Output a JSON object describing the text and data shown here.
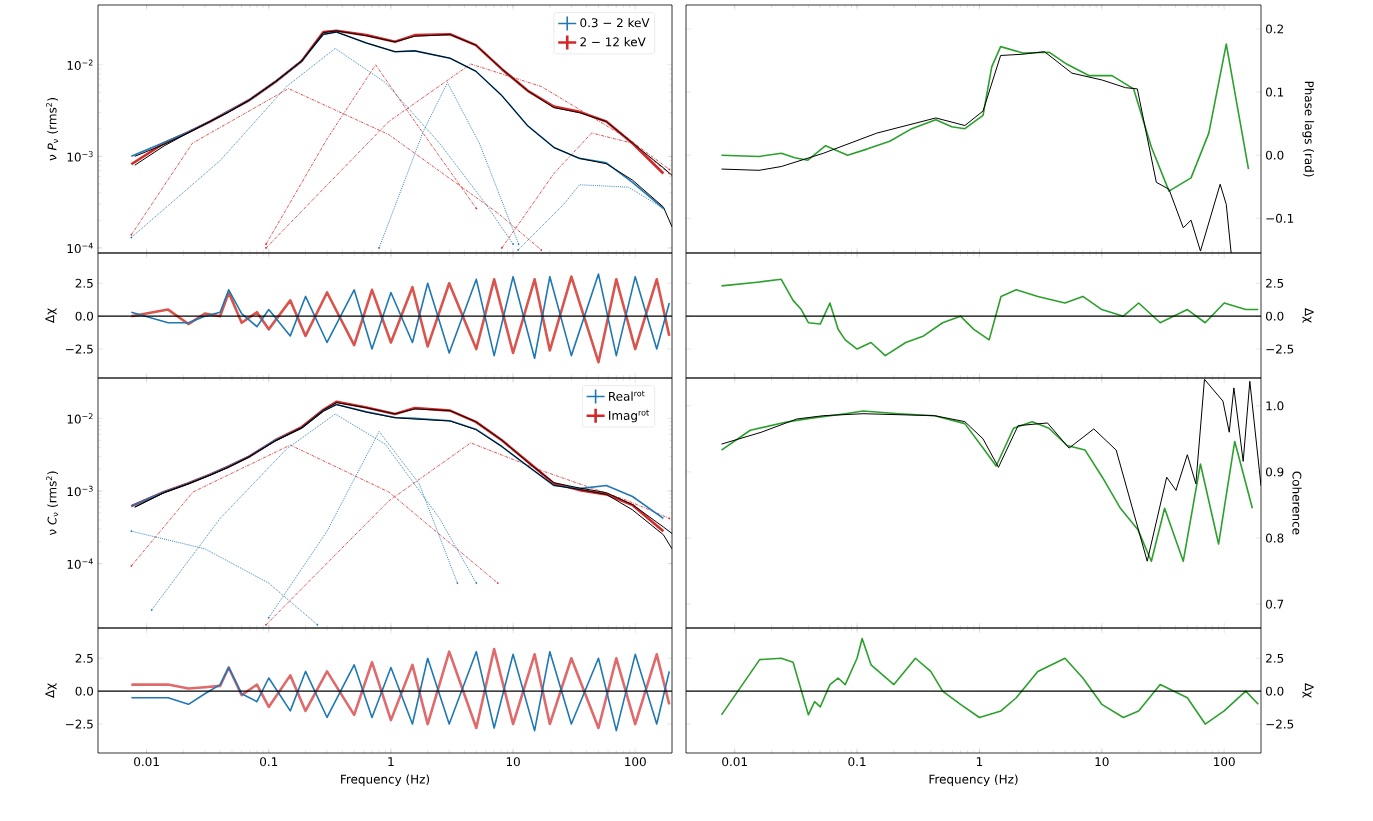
{
  "chart_data": [
    {
      "type": "line",
      "log": "xy",
      "ylabel": "ν *P*$_{ν}$ (rms$^{2}$)",
      "xlim": [
        0.004,
        200
      ],
      "ylim": [
        8.8e-05,
        0.045
      ],
      "xticks": [
        0.01,
        0.1,
        1,
        10,
        100
      ],
      "yticks": [
        {
          "value": 0.0001,
          "label": "10$^{−4}$"
        },
        {
          "value": 0.001,
          "label": "10$^{−3}$"
        },
        {
          "value": 0.01,
          "label": "10$^{−2}$"
        }
      ],
      "tick_labels": "y",
      "legend": "top right",
      "series": [
        {
          "name": "0.3 − 2 keV",
          "color": "#1f77b4",
          "line_style": "solid",
          "x": [
            0.0075,
            0.0139,
            0.0218,
            0.033,
            0.046,
            0.069,
            0.113,
            0.186,
            0.28,
            0.358,
            0.63,
            1.08,
            1.57,
            3.05,
            4.96,
            8.1,
            13.2,
            21.6,
            35,
            58,
            95,
            170
          ],
          "values": [
            0.001,
            0.00142,
            0.00183,
            0.0024,
            0.00306,
            0.0041,
            0.0065,
            0.011,
            0.0215,
            0.0228,
            0.0173,
            0.0139,
            0.0142,
            0.0118,
            0.0085,
            0.0046,
            0.00215,
            0.00125,
            0.00095,
            0.00085,
            0.00052,
            0.00027
          ]
        },
        {
          "name": "2 − 12 keV",
          "color": "#d62728",
          "line_style": "solid",
          "x": [
            0.0075,
            0.0139,
            0.0218,
            0.033,
            0.046,
            0.069,
            0.113,
            0.186,
            0.28,
            0.358,
            0.63,
            1.08,
            1.57,
            3.05,
            4.96,
            8.1,
            13.2,
            21.6,
            35,
            58,
            95,
            170
          ],
          "values": [
            0.00082,
            0.00139,
            0.00183,
            0.0024,
            0.00306,
            0.0041,
            0.0065,
            0.011,
            0.0228,
            0.0235,
            0.0211,
            0.0179,
            0.0211,
            0.0216,
            0.0164,
            0.00896,
            0.0052,
            0.0035,
            0.00306,
            0.0024,
            0.00139,
            0.00065
          ]
        },
        {
          "color": "#000000",
          "line_style": "solid",
          "x": [
            0.008,
            0.0139,
            0.0218,
            0.033,
            0.046,
            0.069,
            0.113,
            0.186,
            0.28,
            0.358,
            0.63,
            1.08,
            1.57,
            3.05,
            4.96,
            8.1,
            13.2,
            21.6,
            35,
            58,
            95,
            170,
            200
          ],
          "values": [
            0.001,
            0.00135,
            0.0018,
            0.0024,
            0.003,
            0.0041,
            0.0065,
            0.011,
            0.0215,
            0.0228,
            0.0173,
            0.0139,
            0.0142,
            0.0118,
            0.0085,
            0.0046,
            0.00215,
            0.00125,
            0.00095,
            0.00083,
            0.00055,
            0.00028,
            0.00017
          ]
        },
        {
          "color": "#000000",
          "line_style": "solid",
          "x": [
            0.008,
            0.0139,
            0.0218,
            0.033,
            0.046,
            0.069,
            0.113,
            0.186,
            0.28,
            0.358,
            0.63,
            1.08,
            1.57,
            3.05,
            4.96,
            8.1,
            13.2,
            21.6,
            35,
            58,
            95,
            170,
            200
          ],
          "values": [
            0.0008,
            0.0013,
            0.0018,
            0.0024,
            0.003,
            0.0041,
            0.0065,
            0.011,
            0.0225,
            0.0235,
            0.0208,
            0.0178,
            0.0205,
            0.0214,
            0.0164,
            0.009,
            0.0052,
            0.0034,
            0.003,
            0.0024,
            0.0014,
            0.00075,
            0.00062
          ]
        },
        {
          "color": "#d62728",
          "line_style": "dashed",
          "x": [
            0.0075,
            0.0237,
            0.145,
            0.96,
            7.5,
            17
          ],
          "values": [
            0.000139,
            0.00139,
            0.0055,
            0.00173,
            0.00024,
            9.5e-05
          ]
        },
        {
          "color": "#1f77b4",
          "line_style": "dotted",
          "x": [
            0.0075,
            0.04,
            0.14,
            0.35,
            0.9,
            2.5,
            6,
            10
          ],
          "values": [
            0.00013,
            0.0009,
            0.0058,
            0.0151,
            0.0064,
            0.00139,
            0.0003,
            0.00011
          ]
        },
        {
          "color": "#d62728",
          "line_style": "dashed",
          "x": [
            0.095,
            0.96,
            4.5,
            17,
            88,
            190
          ],
          "values": [
            0.0001,
            0.0024,
            0.0102,
            0.0058,
            0.00155,
            0.00072
          ]
        },
        {
          "color": "#1f77b4",
          "line_style": "dotted",
          "x": [
            0.8,
            1.85,
            2.9,
            5.3,
            11.1
          ],
          "values": [
            0.0001,
            0.0019,
            0.0064,
            0.00139,
            0.00011
          ]
        },
        {
          "color": "#d62728",
          "line_style": "dashed",
          "x": [
            0.095,
            0.3,
            0.75,
            1.57,
            5
          ],
          "values": [
            0.00011,
            0.00155,
            0.01,
            0.0024,
            0.00027
          ]
        },
        {
          "color": "#1f77b4",
          "line_style": "dotted",
          "x": [
            11,
            26,
            35,
            88,
            170
          ],
          "values": [
            9.5e-05,
            0.0003,
            0.00049,
            0.00046,
            0.00027
          ]
        },
        {
          "color": "#d62728",
          "line_style": "dashed",
          "x": [
            8.1,
            21.6,
            44,
            95,
            190
          ],
          "values": [
            0.0001,
            0.00065,
            0.0018,
            0.00139,
            0.00065
          ]
        }
      ]
    },
    {
      "type": "line",
      "log": "x",
      "ylabel": "Phase lags (rad)",
      "xlim": [
        0.004,
        200
      ],
      "ylim": [
        -0.155,
        0.238
      ],
      "xticks": [
        0.01,
        0.1,
        1,
        10,
        100
      ],
      "yticks": [
        {
          "value": -0.1,
          "label": "−0.1"
        },
        {
          "value": 0,
          "label": "0.0"
        },
        0.1,
        0.2
      ],
      "tick_labels": "y",
      "series": [
        {
          "color": "#2ca02c",
          "line_style": "solid",
          "x": [
            0.0078,
            0.0158,
            0.024,
            0.031,
            0.0396,
            0.0553,
            0.0837,
            0.122,
            0.185,
            0.28,
            0.44,
            0.593,
            0.76,
            1.07,
            1.26,
            1.49,
            2.26,
            3.73,
            5.2,
            7.9,
            12.1,
            18.2,
            25.4,
            35.4,
            53.6,
            74.9,
            104,
            158
          ],
          "values": [
            0.0,
            -0.002,
            0.003,
            -0.004,
            -0.008,
            0.015,
            0.0,
            0.01,
            0.022,
            0.042,
            0.056,
            0.045,
            0.042,
            0.063,
            0.14,
            0.172,
            0.162,
            0.163,
            0.144,
            0.126,
            0.126,
            0.105,
            0.013,
            -0.057,
            -0.036,
            0.035,
            0.176,
            -0.022
          ]
        },
        {
          "color": "#000000",
          "line_style": "solid",
          "x": [
            0.0078,
            0.0158,
            0.024,
            0.053,
            0.145,
            0.44,
            0.76,
            1.07,
            1.49,
            2.26,
            3.4,
            5.7,
            10.1,
            15.6,
            19.5,
            27.9,
            35.4,
            46.3,
            53.6,
            64,
            92.7,
            104,
            114
          ],
          "values": [
            -0.022,
            -0.024,
            -0.018,
            0.003,
            0.035,
            0.059,
            0.047,
            0.07,
            0.158,
            0.16,
            0.164,
            0.13,
            0.119,
            0.107,
            0.105,
            -0.043,
            -0.054,
            -0.115,
            -0.103,
            -0.152,
            -0.046,
            -0.078,
            -0.155
          ]
        }
      ]
    },
    {
      "type": "line",
      "log": "x",
      "ylabel": "Δχ",
      "xlim": [
        0.004,
        200
      ],
      "ylim": [
        -4.7,
        4.8
      ],
      "xticks": [
        0.01,
        0.1,
        1,
        10,
        100
      ],
      "yticks": [
        {
          "value": -2.5,
          "label": "−2.5"
        },
        {
          "value": 0,
          "label": "0.0"
        },
        2.5
      ],
      "tick_labels": "y",
      "ref_lines": [
        {
          "axis": "y",
          "value": 0,
          "color": "#000000"
        }
      ],
      "series": [
        {
          "color": "#1f77b4",
          "line_style": "solid",
          "x": [
            0.0075,
            0.015,
            0.022,
            0.03,
            0.04,
            0.047,
            0.06,
            0.08,
            0.1,
            0.15,
            0.2,
            0.3,
            0.5,
            0.7,
            1,
            1.5,
            2,
            3,
            5,
            7,
            10,
            15,
            20,
            30,
            50,
            70,
            100,
            150,
            190
          ],
          "values": [
            0.3,
            -0.5,
            -0.5,
            0.0,
            0.3,
            2.0,
            0.2,
            -0.8,
            0.5,
            -1.5,
            1.5,
            -2.0,
            2.0,
            -2.5,
            1.8,
            -2.0,
            2.5,
            -2.8,
            2.8,
            -3.0,
            3.0,
            -3.2,
            3.0,
            -3.0,
            3.2,
            -3.0,
            3.0,
            -2.5,
            1.0
          ]
        },
        {
          "color": "#d9544d",
          "line_style": "solid",
          "x": [
            0.0075,
            0.015,
            0.022,
            0.03,
            0.04,
            0.047,
            0.06,
            0.08,
            0.1,
            0.15,
            0.2,
            0.3,
            0.5,
            0.7,
            1,
            1.5,
            2,
            3,
            5,
            7,
            10,
            15,
            20,
            30,
            50,
            70,
            100,
            150,
            190
          ],
          "values": [
            0.0,
            0.5,
            -0.6,
            0.2,
            0.0,
            1.8,
            -0.5,
            0.3,
            -1.0,
            1.2,
            -1.5,
            1.8,
            -2.2,
            2.0,
            -2.0,
            2.2,
            -2.3,
            2.5,
            -2.5,
            2.8,
            -2.8,
            2.8,
            -2.6,
            3.0,
            -3.5,
            2.8,
            -2.5,
            2.8,
            -1.5
          ]
        }
      ]
    },
    {
      "type": "line",
      "log": "x",
      "ylabel": "Δχ",
      "xlim": [
        0.004,
        200
      ],
      "ylim": [
        -4.7,
        4.8
      ],
      "xticks": [
        0.01,
        0.1,
        1,
        10,
        100
      ],
      "yticks": [
        {
          "value": -2.5,
          "label": "−2.5"
        },
        {
          "value": 0,
          "label": "0.0"
        },
        2.5
      ],
      "tick_labels": "y",
      "ref_lines": [
        {
          "axis": "y",
          "value": 0,
          "color": "#000000"
        }
      ],
      "series": [
        {
          "color": "#2ca02c",
          "line_style": "solid",
          "x": [
            0.0078,
            0.016,
            0.024,
            0.03,
            0.035,
            0.04,
            0.05,
            0.06,
            0.07,
            0.08,
            0.1,
            0.13,
            0.17,
            0.25,
            0.35,
            0.5,
            0.7,
            0.9,
            1.2,
            1.5,
            2,
            3,
            5,
            7,
            10,
            15,
            20,
            30,
            50,
            70,
            100,
            150,
            190
          ],
          "values": [
            2.3,
            2.6,
            2.8,
            1.2,
            0.5,
            -0.5,
            -0.6,
            1.0,
            -1.0,
            -1.8,
            -2.5,
            -2.0,
            -3.0,
            -2.0,
            -1.5,
            -0.5,
            0.0,
            -1.0,
            -1.8,
            1.5,
            2.0,
            1.5,
            1.0,
            1.5,
            0.5,
            0.0,
            1.0,
            -0.5,
            0.5,
            -0.5,
            1.0,
            0.5,
            0.5
          ]
        }
      ]
    },
    {
      "type": "line",
      "log": "xy",
      "ylabel": "ν *C*$_{ν}$ (rms$^{2}$)",
      "xlim": [
        0.004,
        200
      ],
      "ylim": [
        1.3e-05,
        0.036
      ],
      "xticks": [
        0.01,
        0.1,
        1,
        10,
        100
      ],
      "yticks": [
        {
          "value": 0.0001,
          "label": "10$^{−4}$"
        },
        {
          "value": 0.001,
          "label": "10$^{−3}$"
        },
        {
          "value": 0.01,
          "label": "10$^{−2}$"
        }
      ],
      "tick_labels": "y",
      "legend": "top right",
      "series": [
        {
          "name": "Real$^{rot}$",
          "color": "#1f77b4",
          "line_style": "solid",
          "x": [
            0.0075,
            0.0139,
            0.0218,
            0.033,
            0.046,
            0.069,
            0.113,
            0.186,
            0.28,
            0.358,
            0.63,
            1.08,
            1.57,
            3.05,
            4.96,
            8.1,
            13.2,
            21.6,
            35,
            58,
            95,
            170
          ],
          "values": [
            0.00062,
            0.00097,
            0.00127,
            0.00168,
            0.00214,
            0.00298,
            0.005,
            0.0074,
            0.0128,
            0.0155,
            0.0123,
            0.0103,
            0.01,
            0.0093,
            0.0071,
            0.0041,
            0.0022,
            0.00119,
            0.00108,
            0.00119,
            0.00084,
            0.00042
          ]
        },
        {
          "name": "Imag$^{rot}$",
          "color": "#d62728",
          "line_style": "solid",
          "x": [
            0.0075,
            0.0139,
            0.0218,
            0.033,
            0.046,
            0.069,
            0.113,
            0.186,
            0.28,
            0.358,
            0.63,
            1.08,
            1.57,
            3.05,
            4.96,
            8.1,
            13.2,
            21.6,
            35,
            58,
            95,
            170
          ],
          "values": [
            0.00062,
            0.00097,
            0.00127,
            0.00168,
            0.00214,
            0.00298,
            0.005,
            0.0076,
            0.0131,
            0.0169,
            0.0141,
            0.0115,
            0.0139,
            0.0128,
            0.00896,
            0.005,
            0.00253,
            0.00127,
            0.00103,
            0.0009,
            0.00064,
            0.00028
          ]
        },
        {
          "color": "#000000",
          "line_style": "solid",
          "x": [
            0.008,
            0.0139,
            0.0218,
            0.033,
            0.046,
            0.069,
            0.113,
            0.186,
            0.28,
            0.358,
            0.63,
            1.08,
            1.57,
            3.05,
            4.96,
            8.1,
            13.2,
            21.6,
            35,
            58,
            95,
            170,
            200
          ],
          "values": [
            0.0006,
            0.00095,
            0.00125,
            0.00165,
            0.0021,
            0.00295,
            0.0049,
            0.0073,
            0.0125,
            0.0155,
            0.0122,
            0.0102,
            0.0098,
            0.0092,
            0.007,
            0.0041,
            0.0022,
            0.0012,
            0.00105,
            0.0009,
            0.00055,
            0.00025,
            0.00016
          ]
        },
        {
          "color": "#000000",
          "line_style": "solid",
          "x": [
            0.008,
            0.0139,
            0.0218,
            0.033,
            0.046,
            0.069,
            0.113,
            0.186,
            0.28,
            0.358,
            0.63,
            1.08,
            1.57,
            3.05,
            4.96,
            8.1,
            13.2,
            21.6,
            35,
            58,
            95,
            170,
            200
          ],
          "values": [
            0.0006,
            0.00095,
            0.00125,
            0.00165,
            0.0021,
            0.00295,
            0.0049,
            0.0075,
            0.013,
            0.0165,
            0.014,
            0.0115,
            0.0135,
            0.0128,
            0.009,
            0.005,
            0.0025,
            0.0013,
            0.0011,
            0.00095,
            0.00065,
            0.00032,
            0.00026
          ]
        },
        {
          "color": "#d62728",
          "line_style": "dashed",
          "x": [
            0.0075,
            0.024,
            0.15,
            0.96,
            7.5
          ],
          "values": [
            9.3e-05,
            0.00097,
            0.0043,
            0.00097,
            5.4e-05
          ]
        },
        {
          "color": "#1f77b4",
          "line_style": "dotted",
          "x": [
            0.011,
            0.04,
            0.14,
            0.35,
            0.9,
            2.5,
            5
          ],
          "values": [
            2.3e-05,
            0.00042,
            0.0038,
            0.0115,
            0.0044,
            0.00042,
            5.4e-05
          ]
        },
        {
          "color": "#d62728",
          "line_style": "dashed",
          "x": [
            0.095,
            0.96,
            4.5,
            17,
            88,
            190
          ],
          "values": [
            1.44e-05,
            0.00073,
            0.0046,
            0.00192,
            0.00073,
            0.00042
          ]
        },
        {
          "color": "#1f77b4",
          "line_style": "dotted",
          "x": [
            0.1,
            0.3,
            0.8,
            1.7,
            3.5
          ],
          "values": [
            1.8e-05,
            0.00028,
            0.0066,
            0.00127,
            5.4e-05
          ]
        },
        {
          "color": "#1f77b4",
          "line_style": "dotted",
          "x": [
            0.0075,
            0.03,
            0.1,
            0.25
          ],
          "values": [
            0.00028,
            0.00016,
            5.4e-05,
            1.44e-05
          ]
        }
      ]
    },
    {
      "type": "line",
      "log": "x",
      "ylabel": "Coherence",
      "xlim": [
        0.004,
        200
      ],
      "ylim": [
        0.664,
        1.042
      ],
      "xticks": [
        0.01,
        0.1,
        1,
        10,
        100
      ],
      "yticks": [
        0.7,
        0.8,
        0.9,
        {
          "value": 1,
          "label": "1.0"
        }
      ],
      "tick_labels": "y",
      "series": [
        {
          "color": "#2ca02c",
          "line_style": "solid",
          "x": [
            0.0078,
            0.0134,
            0.026,
            0.041,
            0.08,
            0.112,
            0.22,
            0.43,
            0.76,
            1.07,
            1.37,
            1.9,
            2.7,
            3.7,
            5.2,
            7.3,
            10.1,
            14.2,
            19.8,
            25.4,
            32.6,
            46.3,
            64,
            90,
            122,
            170
          ],
          "values": [
            0.933,
            0.963,
            0.975,
            0.981,
            0.988,
            0.992,
            0.988,
            0.985,
            0.973,
            0.936,
            0.909,
            0.966,
            0.976,
            0.966,
            0.94,
            0.933,
            0.892,
            0.845,
            0.812,
            0.765,
            0.845,
            0.765,
            0.912,
            0.791,
            0.946,
            0.845
          ]
        },
        {
          "color": "#000000",
          "line_style": "solid",
          "x": [
            0.0078,
            0.0165,
            0.0321,
            0.053,
            0.112,
            0.43,
            0.76,
            1.07,
            1.43,
            2.07,
            3.6,
            5.4,
            8.6,
            13.1,
            23.5,
            33.9,
            40.4,
            50,
            58.7,
            69,
            97.7,
            110,
            120,
            143,
            162,
            200
          ],
          "values": [
            0.942,
            0.96,
            0.98,
            0.985,
            0.988,
            0.985,
            0.976,
            0.95,
            0.907,
            0.97,
            0.974,
            0.936,
            0.965,
            0.933,
            0.765,
            0.892,
            0.872,
            0.926,
            0.882,
            1.04,
            1.007,
            0.96,
            1.027,
            0.916,
            1.037,
            0.879
          ]
        }
      ]
    },
    {
      "type": "line",
      "log": "x",
      "ylabel": "Δχ",
      "xlabel": "Frequency (Hz)",
      "xlim": [
        0.004,
        200
      ],
      "ylim": [
        -4.7,
        4.8
      ],
      "xticks": [
        0.01,
        0.1,
        1,
        10,
        100
      ],
      "yticks": [
        {
          "value": -2.5,
          "label": "−2.5"
        },
        {
          "value": 0,
          "label": "0.0"
        },
        2.5
      ],
      "ref_lines": [
        {
          "axis": "y",
          "value": 0,
          "color": "#000000"
        }
      ],
      "series": [
        {
          "color": "#1f77b4",
          "line_style": "solid",
          "x": [
            0.0075,
            0.015,
            0.022,
            0.03,
            0.04,
            0.047,
            0.06,
            0.08,
            0.1,
            0.15,
            0.2,
            0.3,
            0.5,
            0.7,
            1,
            1.5,
            2,
            3,
            5,
            7,
            10,
            15,
            20,
            30,
            50,
            70,
            100,
            150,
            190
          ],
          "values": [
            -0.5,
            -0.5,
            -1.0,
            -0.2,
            0.5,
            1.8,
            -0.2,
            -0.8,
            1.0,
            -1.5,
            1.5,
            -2.0,
            2.0,
            -2.0,
            1.8,
            -2.5,
            2.5,
            -2.5,
            3.0,
            -2.8,
            2.8,
            -3.0,
            3.0,
            -2.5,
            2.5,
            -3.0,
            2.8,
            -2.5,
            1.5
          ]
        },
        {
          "color": "#e0696b",
          "line_style": "solid",
          "x": [
            0.0075,
            0.015,
            0.022,
            0.03,
            0.04,
            0.047,
            0.06,
            0.08,
            0.1,
            0.15,
            0.2,
            0.3,
            0.5,
            0.7,
            1,
            1.5,
            2,
            3,
            5,
            7,
            10,
            15,
            20,
            30,
            50,
            70,
            100,
            150,
            190
          ],
          "values": [
            0.5,
            0.5,
            0.2,
            0.3,
            0.4,
            1.8,
            -0.3,
            0.5,
            -1.2,
            1.2,
            -1.5,
            1.5,
            -1.8,
            2.2,
            -2.2,
            2.0,
            -2.5,
            3.0,
            -2.8,
            3.2,
            -2.5,
            2.8,
            -2.5,
            2.5,
            -2.8,
            2.5,
            -2.5,
            2.8,
            -1.0
          ]
        }
      ]
    },
    {
      "type": "line",
      "log": "x",
      "ylabel": "Δχ",
      "xlabel": "Frequency (Hz)",
      "xlim": [
        0.004,
        200
      ],
      "ylim": [
        -4.7,
        4.8
      ],
      "xticks": [
        0.01,
        0.1,
        1,
        10,
        100
      ],
      "yticks": [
        {
          "value": -2.5,
          "label": "−2.5"
        },
        {
          "value": 0,
          "label": "0.0"
        },
        2.5
      ],
      "ref_lines": [
        {
          "axis": "y",
          "value": 0,
          "color": "#000000"
        }
      ],
      "series": [
        {
          "color": "#2ca02c",
          "line_style": "solid",
          "x": [
            0.0078,
            0.016,
            0.024,
            0.03,
            0.04,
            0.045,
            0.05,
            0.06,
            0.07,
            0.08,
            0.1,
            0.11,
            0.13,
            0.2,
            0.3,
            0.4,
            0.5,
            0.7,
            1,
            1.5,
            2,
            3,
            5,
            7,
            10,
            15,
            20,
            30,
            50,
            70,
            100,
            150,
            190
          ],
          "values": [
            -1.8,
            2.4,
            2.5,
            2.2,
            -1.8,
            -0.8,
            -1.2,
            0.5,
            1.0,
            0.5,
            2.5,
            4.0,
            2.0,
            0.5,
            2.5,
            1.5,
            0.0,
            -1.0,
            -2.0,
            -1.5,
            -0.5,
            1.5,
            2.5,
            1.0,
            -1.0,
            -2.0,
            -1.5,
            0.5,
            -0.5,
            -2.5,
            -1.5,
            0.0,
            -1.0
          ]
        }
      ]
    }
  ]
}
